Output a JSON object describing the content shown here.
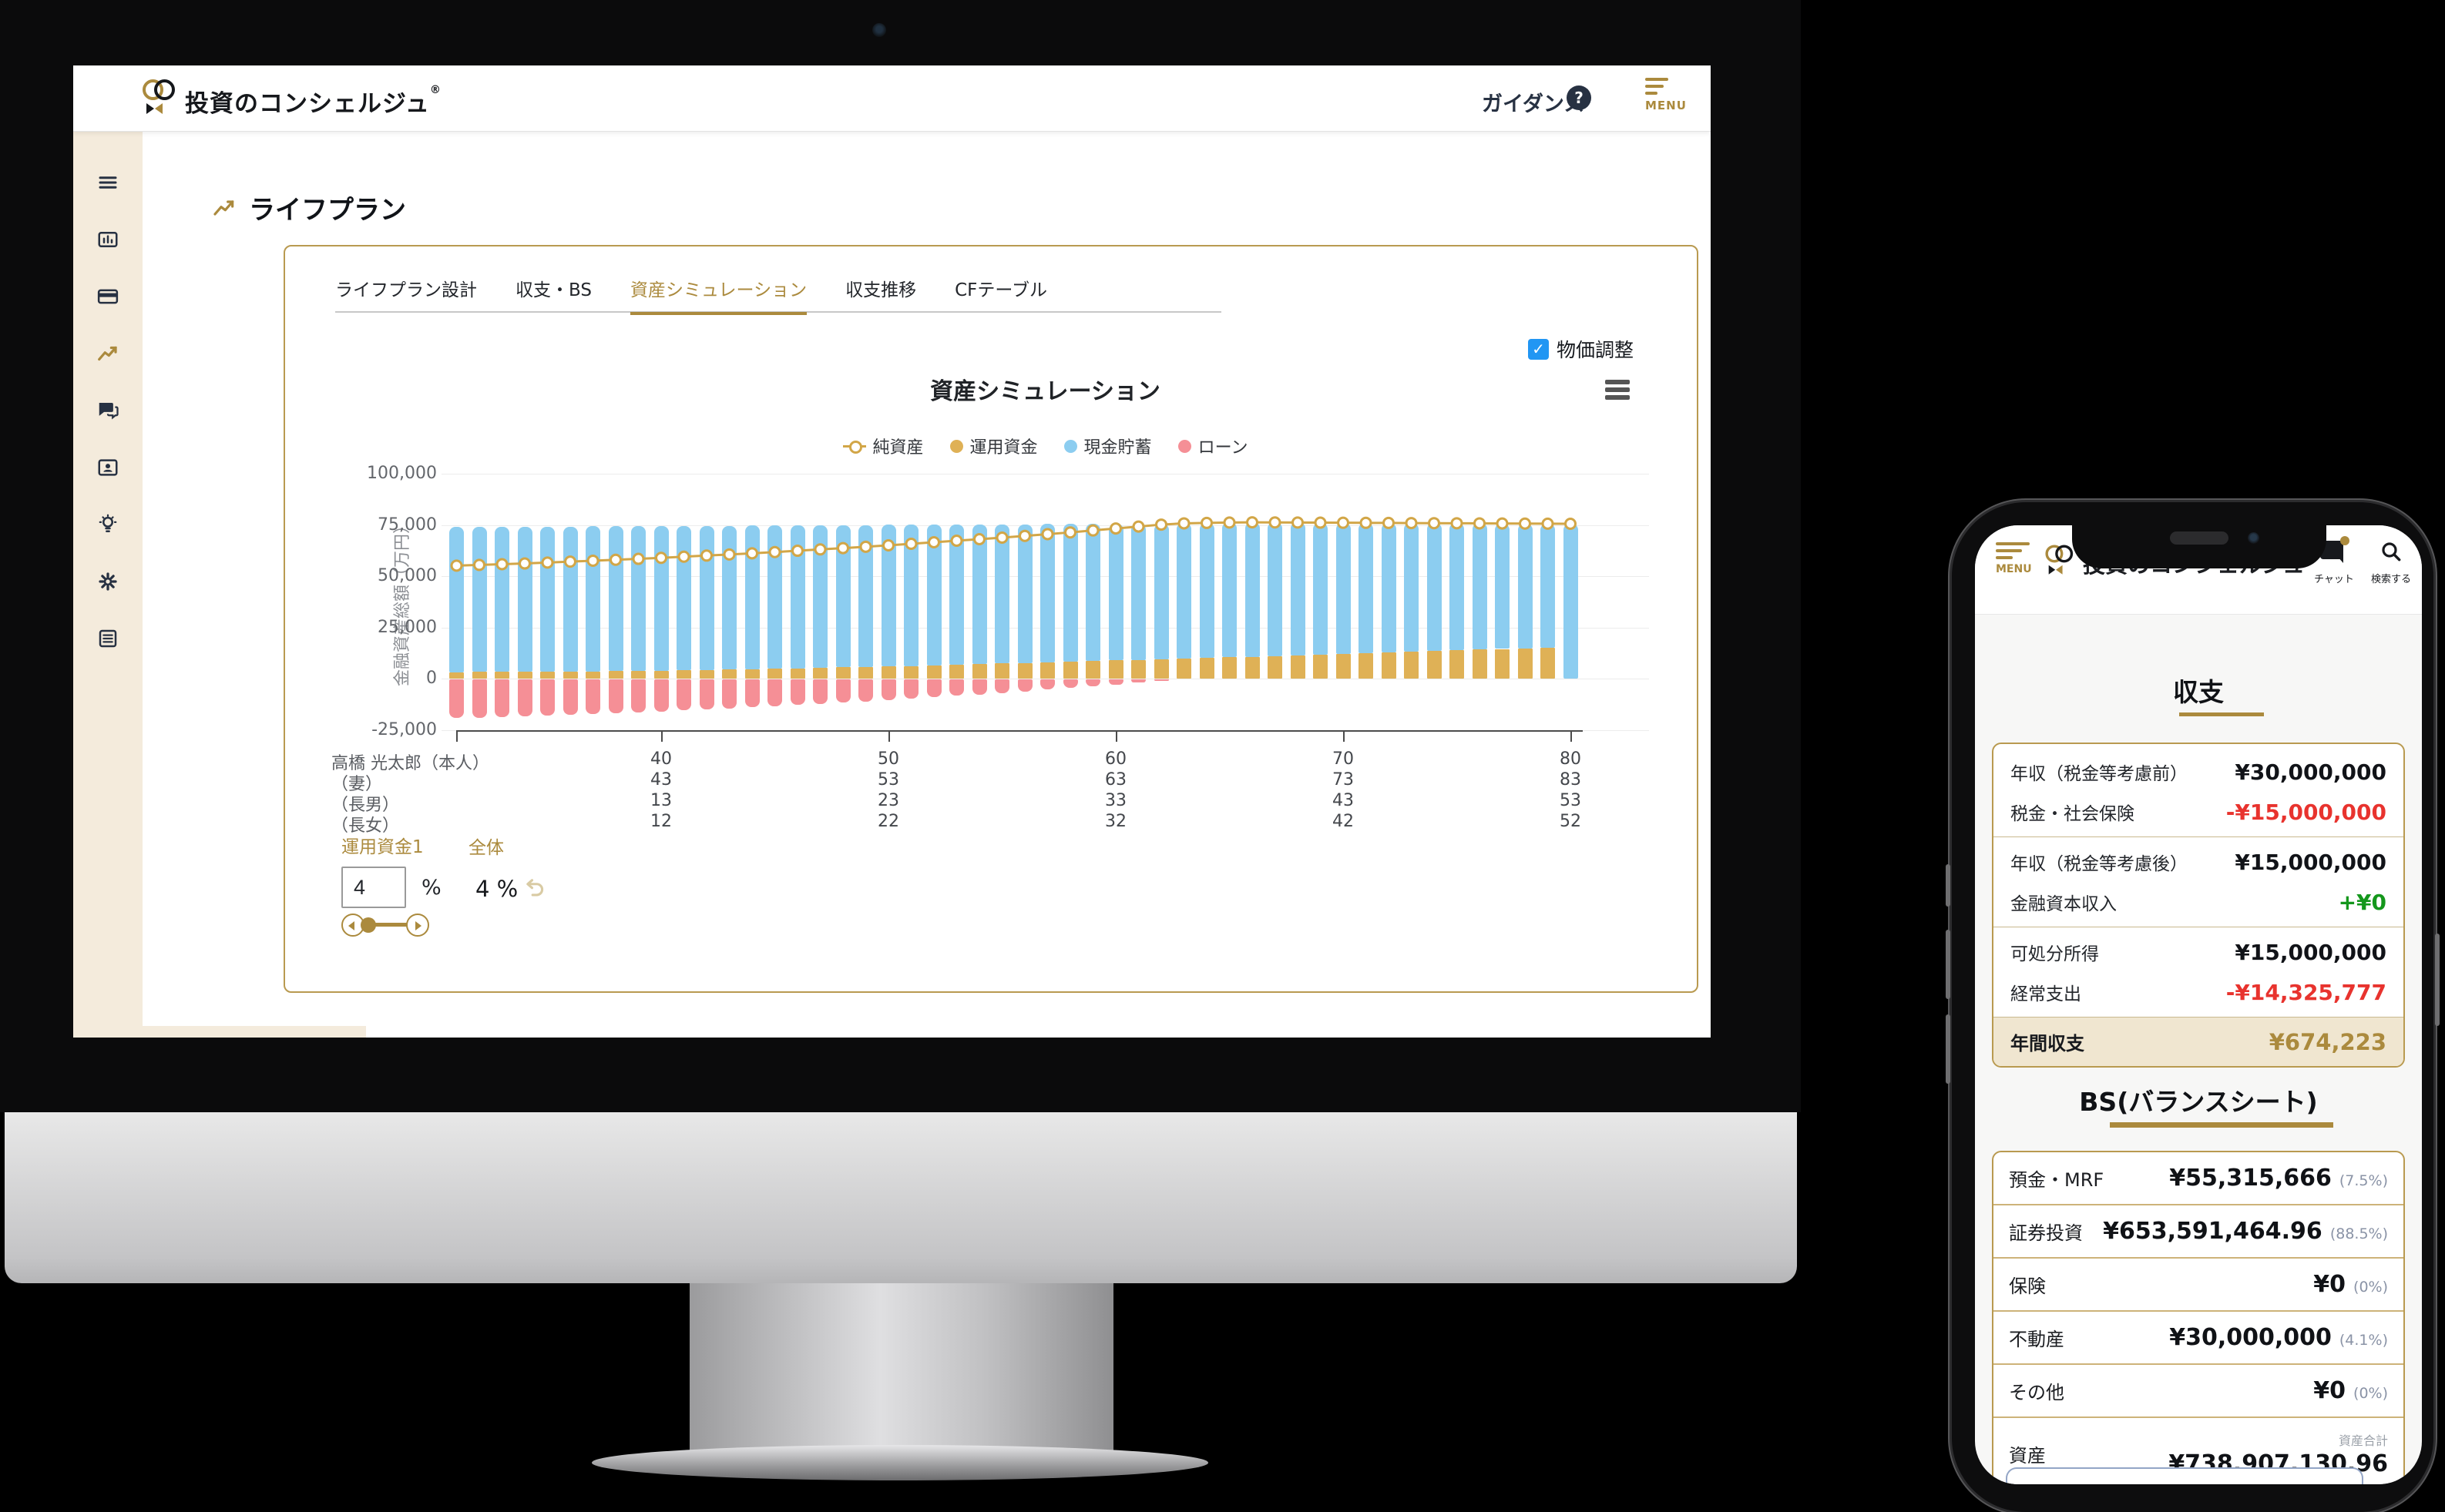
{
  "colors": {
    "gold": "#ab8a3d",
    "gold_border": "#b99a50",
    "navy": "#273142",
    "sidebar_bg": "#f4ebdc",
    "bar_blue": "#8ccdf0",
    "bar_gold": "#dfb156",
    "bar_red": "#f58f96",
    "line_gold": "#d2a647",
    "checkbox_blue": "#2196f3",
    "red_text": "#e8332e",
    "green_text": "#14971c",
    "beige_row": "#f0e6d0",
    "pct_gray": "#8a93a6"
  },
  "desktop": {
    "header": {
      "logo_text": "投資のコンシェルジュ",
      "logo_reg": "®",
      "guidance_label": "ガイダンス",
      "help_glyph": "?",
      "menu_label": "MENU"
    },
    "sidebar_icons": [
      "hamburger",
      "dashboard-chart",
      "credit-card",
      "trend-line",
      "chat",
      "contact-card",
      "lightbulb",
      "gear",
      "document"
    ],
    "page_title": "ライフプラン",
    "tabs": [
      {
        "label": "ライフプラン設計",
        "active": false
      },
      {
        "label": "収支・BS",
        "active": false
      },
      {
        "label": "資産シミュレーション",
        "active": true
      },
      {
        "label": "収支推移",
        "active": false
      },
      {
        "label": "CFテーブル",
        "active": false
      }
    ],
    "price_adjust": {
      "label": "物価調整",
      "checked": true,
      "check_glyph": "✓"
    },
    "family": {
      "rows": [
        {
          "label": "高橋 光太郎（本人）",
          "values": [
            "40",
            "50",
            "60",
            "70",
            "80"
          ]
        },
        {
          "label": "（妻）",
          "values": [
            "43",
            "53",
            "63",
            "73",
            "83"
          ]
        },
        {
          "label": "（長男）",
          "values": [
            "13",
            "23",
            "33",
            "43",
            "53"
          ]
        },
        {
          "label": "（長女）",
          "values": [
            "12",
            "22",
            "32",
            "42",
            "52"
          ]
        }
      ]
    },
    "controls": {
      "fund_label": "運用資金1",
      "overall_label": "全体",
      "input_value": "4",
      "percent_sign": "%",
      "overall_value": "4 %"
    }
  },
  "chart_data": {
    "type": "bar",
    "subtype": "stacked-column-with-line",
    "title": "資産シミュレーション",
    "ylabel": "金融資産総額（万円）",
    "ylim": [
      -25000,
      100000
    ],
    "yticks": {
      "values": [
        100000,
        75000,
        50000,
        25000,
        0,
        -25000
      ],
      "labels": [
        "100,000",
        "75,000",
        "50,000",
        "25,000",
        "0",
        "-25,000"
      ]
    },
    "x_tick_ages": [
      40,
      50,
      60,
      70,
      80
    ],
    "legend": [
      {
        "name": "純資産",
        "marker": "line-circle",
        "color": "#d2a647"
      },
      {
        "name": "運用資金",
        "marker": "circle",
        "color": "#dfb156"
      },
      {
        "name": "現金貯蓄",
        "marker": "circle",
        "color": "#8ccdf0"
      },
      {
        "name": "ローン",
        "marker": "circle",
        "color": "#f58f96"
      }
    ],
    "ages": [
      31,
      32,
      33,
      34,
      35,
      36,
      37,
      38,
      39,
      40,
      41,
      42,
      43,
      44,
      45,
      46,
      47,
      48,
      49,
      50,
      51,
      52,
      53,
      54,
      55,
      56,
      57,
      58,
      59,
      60,
      61,
      62,
      63,
      64,
      65,
      66,
      67,
      68,
      69,
      70,
      71,
      72,
      73,
      74,
      75,
      76,
      77,
      78,
      79,
      80
    ],
    "series": [
      {
        "name": "資産合計(積上げ上端)",
        "values": [
          74000,
          74050,
          74100,
          74150,
          74200,
          74250,
          74300,
          74350,
          74400,
          74500,
          74550,
          74600,
          74650,
          74700,
          74800,
          74850,
          74900,
          74950,
          75000,
          75100,
          75150,
          75200,
          75250,
          75300,
          75350,
          75400,
          75450,
          75500,
          75550,
          75600,
          75650,
          75700,
          75800,
          76000,
          76200,
          76300,
          76250,
          76200,
          76150,
          76100,
          76050,
          76000,
          75950,
          75900,
          75850,
          75800,
          75750,
          75700,
          75650,
          75600
        ]
      },
      {
        "name": "運用資金",
        "values": [
          3300,
          3350,
          3400,
          3450,
          3500,
          3600,
          3700,
          3800,
          3900,
          4000,
          4200,
          4400,
          4600,
          4800,
          5000,
          5200,
          5400,
          5600,
          5800,
          6000,
          6300,
          6600,
          6900,
          7200,
          7500,
          7800,
          8100,
          8400,
          8700,
          9000,
          9300,
          9600,
          9900,
          10200,
          10500,
          10800,
          11100,
          11400,
          11700,
          12000,
          12400,
          12800,
          13200,
          13600,
          14000,
          14300,
          14600,
          14900,
          15200,
          0
        ]
      },
      {
        "name": "ローン",
        "values": [
          18800,
          18500,
          18200,
          17900,
          17500,
          17100,
          16700,
          16300,
          15900,
          15500,
          15000,
          14500,
          14000,
          13500,
          13000,
          12400,
          11800,
          11200,
          10600,
          10000,
          9300,
          8600,
          7900,
          7200,
          6500,
          5700,
          4900,
          4100,
          3200,
          2300,
          1400,
          500,
          0,
          0,
          0,
          0,
          0,
          0,
          0,
          0,
          0,
          0,
          0,
          0,
          0,
          0,
          0,
          0,
          0,
          0
        ]
      },
      {
        "name": "純資産",
        "values": [
          55200,
          55550,
          55900,
          56250,
          56700,
          57150,
          57600,
          58050,
          58500,
          59000,
          59550,
          60100,
          60650,
          61200,
          61800,
          62450,
          63100,
          63750,
          64400,
          65100,
          65850,
          66600,
          67350,
          68100,
          68850,
          69700,
          70550,
          71400,
          72350,
          73300,
          74250,
          75200,
          75800,
          76000,
          76200,
          76300,
          76250,
          76200,
          76150,
          76100,
          76050,
          76000,
          75950,
          75900,
          75850,
          75800,
          75750,
          75700,
          75650,
          75600
        ]
      }
    ]
  },
  "phone": {
    "header": {
      "menu_label": "MENU",
      "logo_text": "投資のコンシェルジュ",
      "chat_label": "チャット",
      "search_label": "検索する"
    },
    "income": {
      "title": "収支",
      "rows": [
        {
          "label": "年収（税金等考慮前）",
          "value": "¥30,000,000",
          "tone": "black"
        },
        {
          "label": "税金・社会保険",
          "value": "-¥15,000,000",
          "tone": "red"
        },
        {
          "label": "年収（税金等考慮後）",
          "value": "¥15,000,000",
          "tone": "black"
        },
        {
          "label": "金融資本収入",
          "value": "+¥0",
          "tone": "green"
        },
        {
          "label": "可処分所得",
          "value": "¥15,000,000",
          "tone": "black"
        },
        {
          "label": "経常支出",
          "value": "-¥14,325,777",
          "tone": "red"
        }
      ],
      "footer": {
        "label": "年間収支",
        "value": "¥674,223"
      }
    },
    "bs": {
      "title": "BS(バランスシート)",
      "rows": [
        {
          "label": "預金・MRF",
          "value": "¥55,315,666",
          "pct": "(7.5%)"
        },
        {
          "label": "証券投資",
          "value": "¥653,591,464.96",
          "pct": "(88.5%)"
        },
        {
          "label": "保険",
          "value": "¥0",
          "pct": "(0%)"
        },
        {
          "label": "不動産",
          "value": "¥30,000,000",
          "pct": "(4.1%)"
        },
        {
          "label": "その他",
          "value": "¥0",
          "pct": "(0%)"
        }
      ],
      "total": {
        "label": "資産",
        "sublabel": "資産合計",
        "value": "¥738,907,130.96"
      }
    }
  }
}
